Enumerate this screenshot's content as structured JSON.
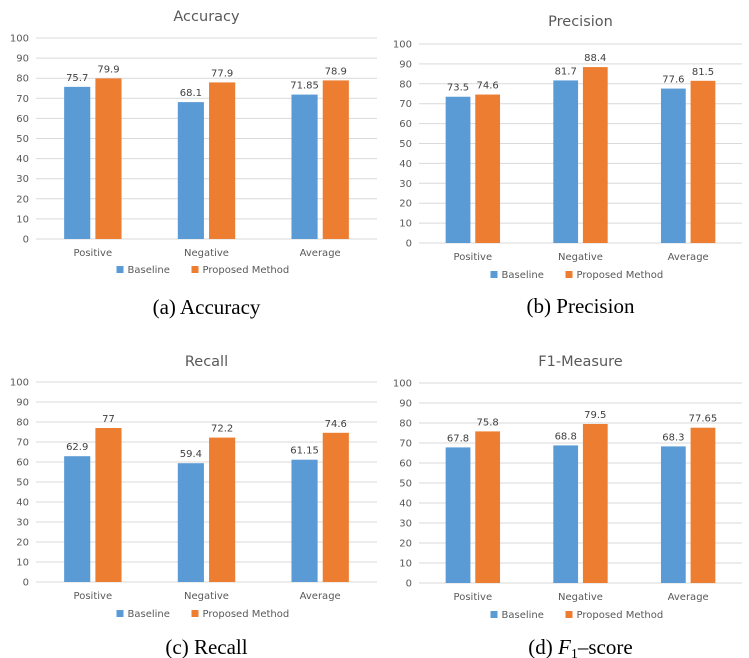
{
  "chart_data": [
    {
      "type": "bar",
      "title": "Accuracy",
      "caption": "(a) Accuracy",
      "categories": [
        "Positive",
        "Negative",
        "Average"
      ],
      "series": [
        {
          "name": "Baseline",
          "values": [
            75.7,
            68.1,
            71.85
          ],
          "labels": [
            "75.7",
            "68.1",
            "71.85"
          ]
        },
        {
          "name": "Proposed Method",
          "values": [
            79.9,
            77.9,
            78.9
          ],
          "labels": [
            "79.9",
            "77.9",
            "78.9"
          ]
        }
      ],
      "ylim": [
        0,
        100
      ],
      "yticks": [
        "0",
        "10",
        "20",
        "30",
        "40",
        "50",
        "60",
        "70",
        "80",
        "90",
        "100"
      ],
      "grid": true,
      "legend": "bottom"
    },
    {
      "type": "bar",
      "title": "Precision",
      "caption": "(b) Precision",
      "categories": [
        "Positive",
        "Negative",
        "Average"
      ],
      "series": [
        {
          "name": "Baseline",
          "values": [
            73.5,
            81.7,
            77.6
          ],
          "labels": [
            "73.5",
            "81.7",
            "77.6"
          ]
        },
        {
          "name": "Proposed Method",
          "values": [
            74.6,
            88.4,
            81.5
          ],
          "labels": [
            "74.6",
            "88.4",
            "81.5"
          ]
        }
      ],
      "ylim": [
        0,
        100
      ],
      "yticks": [
        "0",
        "10",
        "20",
        "30",
        "40",
        "50",
        "60",
        "70",
        "80",
        "90",
        "100"
      ],
      "grid": true,
      "legend": "bottom"
    },
    {
      "type": "bar",
      "title": "Recall",
      "caption": "(c) Recall",
      "categories": [
        "Positive",
        "Negative",
        "Average"
      ],
      "series": [
        {
          "name": "Baseline",
          "values": [
            62.9,
            59.4,
            61.15
          ],
          "labels": [
            "62.9",
            "59.4",
            "61.15"
          ]
        },
        {
          "name": "Proposed Method",
          "values": [
            77,
            72.2,
            74.6
          ],
          "labels": [
            "77",
            "72.2",
            "74.6"
          ]
        }
      ],
      "ylim": [
        0,
        100
      ],
      "yticks": [
        "0",
        "10",
        "20",
        "30",
        "40",
        "50",
        "60",
        "70",
        "80",
        "90",
        "100"
      ],
      "grid": true,
      "legend": "bottom"
    },
    {
      "type": "bar",
      "title": "F1-Measure",
      "caption_prefix": "(d) ",
      "caption_math": "F",
      "caption_sub": "1",
      "caption_suffix": "–score",
      "categories": [
        "Positive",
        "Negative",
        "Average"
      ],
      "series": [
        {
          "name": "Baseline",
          "values": [
            67.8,
            68.8,
            68.3
          ],
          "labels": [
            "67.8",
            "68.8",
            "68.3"
          ]
        },
        {
          "name": "Proposed Method",
          "values": [
            75.8,
            79.5,
            77.65
          ],
          "labels": [
            "75.8",
            "79.5",
            "77.65"
          ]
        }
      ],
      "ylim": [
        0,
        100
      ],
      "yticks": [
        "0",
        "10",
        "20",
        "30",
        "40",
        "50",
        "60",
        "70",
        "80",
        "90",
        "100"
      ],
      "grid": true,
      "legend": "bottom"
    }
  ],
  "colors": {
    "baseline": "#5b9bd5",
    "proposed": "#ed7d31",
    "grid": "#d9d9d9",
    "axis": "#d9d9d9"
  }
}
